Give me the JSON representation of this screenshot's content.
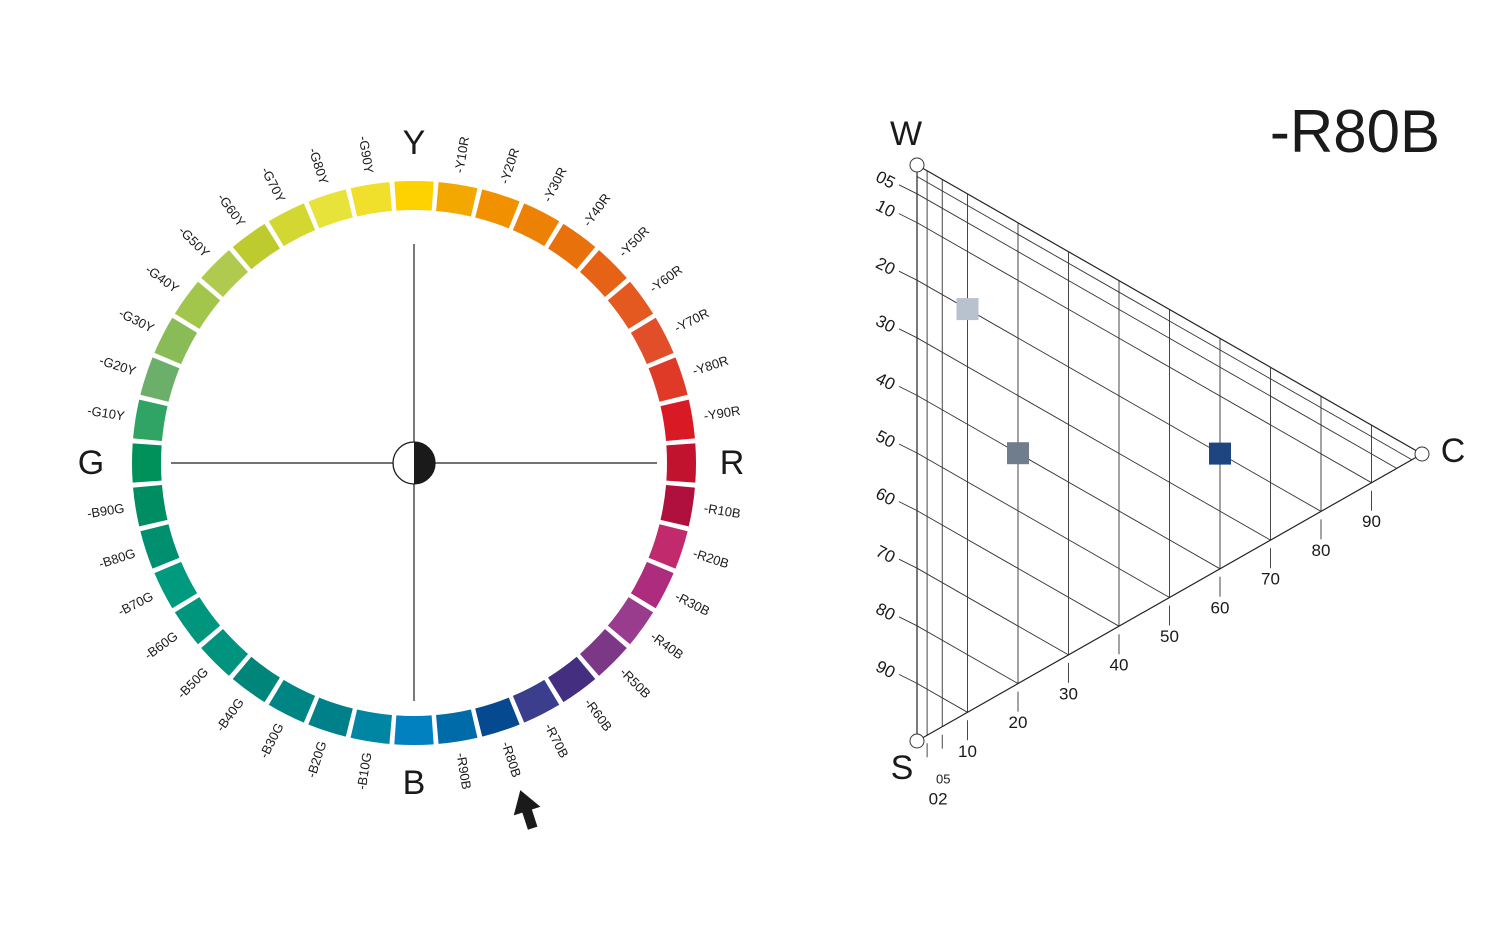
{
  "title": "-R80B",
  "circle": {
    "axes": {
      "top": "Y",
      "right": "R",
      "bottom": "B",
      "left": "G"
    },
    "hues": [
      {
        "label": "",
        "color": "#FDD200"
      },
      {
        "label": "-Y10R",
        "color": "#F3A800"
      },
      {
        "label": "-Y20R",
        "color": "#F19100"
      },
      {
        "label": "-Y30R",
        "color": "#EC8106"
      },
      {
        "label": "-Y40R",
        "color": "#E8710C"
      },
      {
        "label": "-Y50R",
        "color": "#E66315"
      },
      {
        "label": "-Y60R",
        "color": "#E3591F"
      },
      {
        "label": "-Y70R",
        "color": "#E24D2A"
      },
      {
        "label": "-Y80R",
        "color": "#DF3A27"
      },
      {
        "label": "-Y90R",
        "color": "#D91A25"
      },
      {
        "label": "",
        "color": "#C1122E"
      },
      {
        "label": "-R10B",
        "color": "#B0103E"
      },
      {
        "label": "-R20B",
        "color": "#C12A6C"
      },
      {
        "label": "-R30B",
        "color": "#AE2C7D"
      },
      {
        "label": "-R40B",
        "color": "#9A3C8E"
      },
      {
        "label": "-R50B",
        "color": "#7C3886"
      },
      {
        "label": "-R60B",
        "color": "#432E80"
      },
      {
        "label": "-R70B",
        "color": "#3B3E8C"
      },
      {
        "label": "-R80B",
        "color": "#054A90"
      },
      {
        "label": "-R90B",
        "color": "#006BA9"
      },
      {
        "label": "",
        "color": "#0181C0"
      },
      {
        "label": "-B10G",
        "color": "#0086A2"
      },
      {
        "label": "-B20G",
        "color": "#008089"
      },
      {
        "label": "-B30G",
        "color": "#008585"
      },
      {
        "label": "-B40G",
        "color": "#00857A"
      },
      {
        "label": "-B50G",
        "color": "#00947F"
      },
      {
        "label": "-B60G",
        "color": "#00967E"
      },
      {
        "label": "-B70G",
        "color": "#009A7F"
      },
      {
        "label": "-B80G",
        "color": "#008F6F"
      },
      {
        "label": "-B90G",
        "color": "#008D61"
      },
      {
        "label": "",
        "color": "#00915A"
      },
      {
        "label": "-G10Y",
        "color": "#2FA464"
      },
      {
        "label": "-G20Y",
        "color": "#6BAF6A"
      },
      {
        "label": "-G30Y",
        "color": "#89BC56"
      },
      {
        "label": "-G40Y",
        "color": "#A1C64B"
      },
      {
        "label": "-G50Y",
        "color": "#AFCA4E"
      },
      {
        "label": "-G60Y",
        "color": "#BDCB2E"
      },
      {
        "label": "-G70Y",
        "color": "#D3D732"
      },
      {
        "label": "-G80Y",
        "color": "#E8E33A"
      },
      {
        "label": "-G90Y",
        "color": "#F0DF2B"
      }
    ],
    "selected_hue": "-R80B"
  },
  "triangle": {
    "vertices": {
      "white": "W",
      "chromatic": "C",
      "black": "S"
    },
    "blackness_ticks": [
      "05",
      "10",
      "20",
      "30",
      "40",
      "50",
      "60",
      "70",
      "80",
      "90"
    ],
    "chromaticness_ticks": [
      "02",
      "05",
      "10",
      "20",
      "30",
      "40",
      "50",
      "60",
      "70",
      "80",
      "90"
    ],
    "samples": [
      {
        "blackness": 20,
        "chromaticness": 10,
        "color": "#B8C2CE"
      },
      {
        "blackness": 40,
        "chromaticness": 20,
        "color": "#6F7D8C"
      },
      {
        "blackness": 20,
        "chromaticness": 60,
        "color": "#1F4580"
      }
    ]
  }
}
